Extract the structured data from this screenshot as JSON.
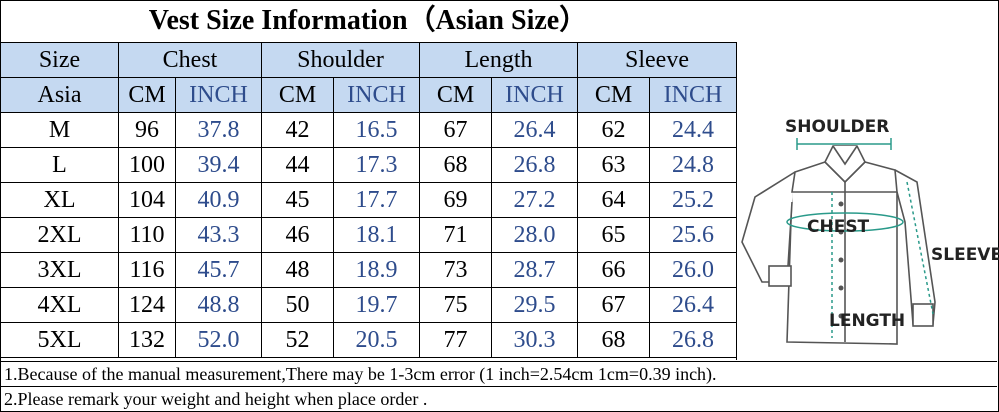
{
  "title": "Vest Size Information（Asian Size）",
  "header": {
    "size": "Size",
    "chest": "Chest",
    "shoulder": "Shoulder",
    "length": "Length",
    "sleeve": "Sleeve"
  },
  "subheader": {
    "region": "Asia",
    "cm": "CM",
    "inch": "INCH"
  },
  "rows": [
    {
      "size": "M",
      "chest_cm": "96",
      "chest_inch": "37.8",
      "shoulder_cm": "42",
      "shoulder_inch": "16.5",
      "length_cm": "67",
      "length_inch": "26.4",
      "sleeve_cm": "62",
      "sleeve_inch": "24.4"
    },
    {
      "size": "L",
      "chest_cm": "100",
      "chest_inch": "39.4",
      "shoulder_cm": "44",
      "shoulder_inch": "17.3",
      "length_cm": "68",
      "length_inch": "26.8",
      "sleeve_cm": "63",
      "sleeve_inch": "24.8"
    },
    {
      "size": "XL",
      "chest_cm": "104",
      "chest_inch": "40.9",
      "shoulder_cm": "45",
      "shoulder_inch": "17.7",
      "length_cm": "69",
      "length_inch": "27.2",
      "sleeve_cm": "64",
      "sleeve_inch": "25.2"
    },
    {
      "size": "2XL",
      "chest_cm": "110",
      "chest_inch": "43.3",
      "shoulder_cm": "46",
      "shoulder_inch": "18.1",
      "length_cm": "71",
      "length_inch": "28.0",
      "sleeve_cm": "65",
      "sleeve_inch": "25.6"
    },
    {
      "size": "3XL",
      "chest_cm": "116",
      "chest_inch": "45.7",
      "shoulder_cm": "48",
      "shoulder_inch": "18.9",
      "length_cm": "73",
      "length_inch": "28.7",
      "sleeve_cm": "66",
      "sleeve_inch": "26.0"
    },
    {
      "size": "4XL",
      "chest_cm": "124",
      "chest_inch": "48.8",
      "shoulder_cm": "50",
      "shoulder_inch": "19.7",
      "length_cm": "75",
      "length_inch": "29.5",
      "sleeve_cm": "67",
      "sleeve_inch": "26.4"
    },
    {
      "size": "5XL",
      "chest_cm": "132",
      "chest_inch": "52.0",
      "shoulder_cm": "52",
      "shoulder_inch": "20.5",
      "length_cm": "77",
      "length_inch": "30.3",
      "sleeve_cm": "68",
      "sleeve_inch": "26.8"
    }
  ],
  "diagram": {
    "shoulder": "SHOULDER",
    "chest": "CHEST",
    "sleeve": "SLEEVE",
    "length": "LENGTH"
  },
  "notes": [
    "1.Because of the manual measurement,There may be 1-3cm error (1 inch=2.54cm 1cm=0.39 inch).",
    "2.Please remark your weight and height when place order ."
  ],
  "colors": {
    "header_bg": "#c5d9f1",
    "inch_text": "#2e4c8c"
  }
}
